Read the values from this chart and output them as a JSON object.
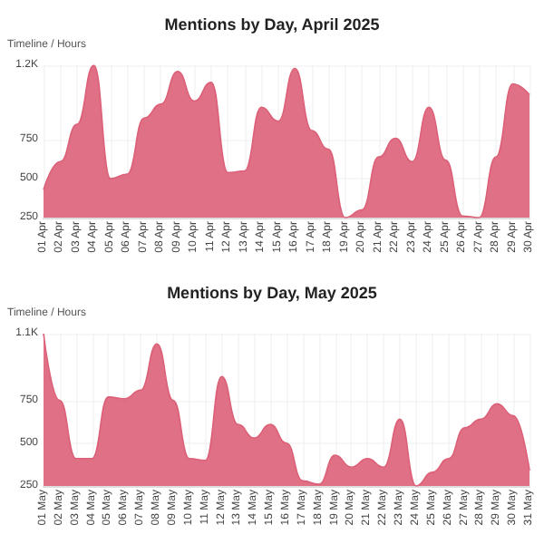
{
  "chart_data": [
    {
      "type": "area",
      "title": "Mentions by Day, April 2025",
      "ylabel": "Timeline / Hours",
      "categories": [
        "01 Apr",
        "02 Apr",
        "03 Apr",
        "04 Apr",
        "05 Apr",
        "06 Apr",
        "07 Apr",
        "08 Apr",
        "09 Apr",
        "10 Apr",
        "11 Apr",
        "12 Apr",
        "13 Apr",
        "14 Apr",
        "15 Apr",
        "16 Apr",
        "17 Apr",
        "18 Apr",
        "19 Apr",
        "20 Apr",
        "21 Apr",
        "22 Apr",
        "23 Apr",
        "24 Apr",
        "25 Apr",
        "26 Apr",
        "27 Apr",
        "28 Apr",
        "29 Apr",
        "30 Apr"
      ],
      "series": [
        {
          "color": "#dc6178",
          "values": [
            430,
            610,
            850,
            1230,
            500,
            530,
            890,
            980,
            1190,
            1000,
            1120,
            540,
            550,
            960,
            870,
            1210,
            810,
            690,
            250,
            300,
            640,
            760,
            610,
            960,
            620,
            260,
            250,
            640,
            1110,
            1040
          ]
        }
      ],
      "ylim": [
        250,
        1230
      ],
      "yticks": [
        250,
        500,
        750,
        {
          "value": 1230,
          "label": "1.2K"
        }
      ],
      "grid": true
    },
    {
      "type": "area",
      "title": "Mentions by Day, May 2025",
      "ylabel": "Timeline / Hours",
      "categories": [
        "01 May",
        "02 May",
        "03 May",
        "04 May",
        "05 May",
        "06 May",
        "07 May",
        "08 May",
        "09 May",
        "10 May",
        "11 May",
        "12 May",
        "13 May",
        "14 May",
        "15 May",
        "16 May",
        "17 May",
        "18 May",
        "19 May",
        "20 May",
        "21 May",
        "22 May",
        "23 May",
        "24 May",
        "25 May",
        "26 May",
        "27 May",
        "28 May",
        "29 May",
        "30 May",
        "31 May"
      ],
      "series": [
        {
          "color": "#dc6178",
          "values": [
            1140,
            750,
            410,
            410,
            770,
            760,
            810,
            1080,
            750,
            410,
            400,
            890,
            610,
            530,
            610,
            500,
            280,
            260,
            430,
            360,
            410,
            360,
            640,
            250,
            330,
            410,
            590,
            640,
            730,
            660,
            340
          ]
        }
      ],
      "ylim": [
        250,
        1140
      ],
      "yticks": [
        250,
        500,
        750,
        {
          "value": 1140,
          "label": "1.1K"
        }
      ],
      "grid": true
    }
  ]
}
